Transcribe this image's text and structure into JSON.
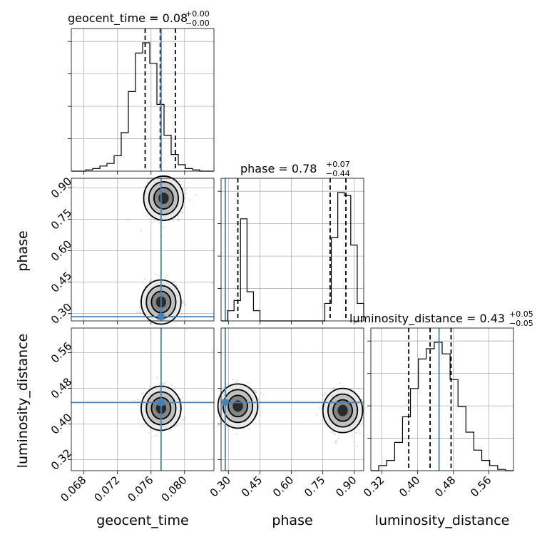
{
  "colors": {
    "truth": "#4682b4",
    "ink": "#000000",
    "grid": "#b0b0b0",
    "scatter": "#808080"
  },
  "chart_data": {
    "type": "corner",
    "parameters": [
      "geocent_time",
      "phase",
      "luminosity_distance"
    ],
    "axis_labels": {
      "geocent_time": "geocent_time",
      "phase": "phase",
      "luminosity_distance": "luminosity_distance"
    },
    "ranges": {
      "geocent_time": [
        0.0665,
        0.0835
      ],
      "phase": [
        0.265,
        0.945
      ],
      "luminosity_distance": [
        0.295,
        0.615
      ]
    },
    "ticks": {
      "geocent_time": [
        "0.068",
        "0.072",
        "0.076",
        "0.080"
      ],
      "phase": [
        "0.30",
        "0.45",
        "0.60",
        "0.75",
        "0.90"
      ],
      "luminosity_distance": [
        "0.32",
        "0.40",
        "0.48",
        "0.56"
      ]
    },
    "truths": {
      "geocent_time": 0.0772,
      "phase": 0.285,
      "luminosity_distance": 0.448
    },
    "titles": {
      "geocent_time": {
        "label": "geocent_time = 0.08",
        "plus": "+0.00",
        "minus": "−0.00"
      },
      "phase": {
        "label": "phase = 0.78",
        "plus": "+0.07",
        "minus": "−0.44"
      },
      "luminosity_distance": {
        "label": "luminosity_distance = 0.43",
        "plus": "+0.05",
        "minus": "−0.05"
      }
    },
    "quantiles": {
      "geocent_time": [
        0.0753,
        0.0771,
        0.0789
      ],
      "phase": [
        0.345,
        0.785,
        0.86
      ],
      "luminosity_distance": [
        0.38,
        0.428,
        0.475
      ]
    },
    "histograms": {
      "geocent_time": [
        0,
        0,
        1,
        2,
        4,
        6,
        12,
        30,
        62,
        92,
        100,
        84,
        52,
        28,
        13,
        5,
        2,
        1,
        0,
        0
      ],
      "phase": [
        0,
        7,
        14,
        70,
        20,
        7,
        0,
        0,
        0,
        0,
        0,
        0,
        0,
        0,
        0,
        0,
        12,
        57,
        88,
        86,
        52,
        12
      ],
      "luminosity_distance": [
        0,
        4,
        8,
        22,
        42,
        64,
        87,
        95,
        100,
        91,
        71,
        50,
        30,
        16,
        8,
        4,
        1,
        0
      ]
    },
    "contours": [
      {
        "x": "geocent_time",
        "y": "phase",
        "centers": [
          [
            0.0775,
            0.85
          ],
          [
            0.0772,
            0.355
          ]
        ]
      },
      {
        "x": "geocent_time",
        "y": "luminosity_distance",
        "centers": [
          [
            0.0772,
            0.435
          ]
        ]
      },
      {
        "x": "phase",
        "y": "luminosity_distance",
        "centers": [
          [
            0.345,
            0.44
          ],
          [
            0.845,
            0.43
          ]
        ]
      }
    ],
    "grid": true
  }
}
